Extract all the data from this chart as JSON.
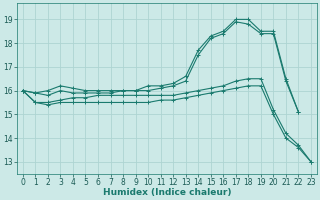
{
  "xlabel": "Humidex (Indice chaleur)",
  "xlim": [
    -0.5,
    23.5
  ],
  "ylim": [
    12.5,
    19.7
  ],
  "yticks": [
    13,
    14,
    15,
    16,
    17,
    18,
    19
  ],
  "xticks": [
    0,
    1,
    2,
    3,
    4,
    5,
    6,
    7,
    8,
    9,
    10,
    11,
    12,
    13,
    14,
    15,
    16,
    17,
    18,
    19,
    20,
    21,
    22,
    23
  ],
  "bg_color": "#cce9e7",
  "grid_color": "#aed4d2",
  "line_color": "#1a7a6e",
  "tick_fontsize": 5.5,
  "xlabel_fontsize": 6.5,
  "lines": [
    {
      "x": [
        0,
        1,
        2,
        3,
        4,
        5,
        6,
        7,
        8,
        9,
        10,
        11,
        12,
        13,
        14,
        15,
        16,
        17,
        18,
        19,
        20,
        21,
        22
      ],
      "y": [
        16.0,
        15.9,
        16.0,
        16.2,
        16.1,
        16.0,
        16.0,
        16.0,
        16.0,
        16.0,
        16.2,
        16.2,
        16.3,
        16.6,
        17.7,
        18.3,
        18.5,
        19.0,
        19.0,
        18.5,
        18.5,
        16.5,
        15.1
      ]
    },
    {
      "x": [
        0,
        1,
        2,
        3,
        4,
        5,
        6,
        7,
        8,
        9,
        10,
        11,
        12,
        13,
        14,
        15,
        16,
        17,
        18,
        19,
        20,
        21,
        22
      ],
      "y": [
        16.0,
        15.9,
        15.8,
        16.0,
        15.9,
        15.9,
        15.9,
        15.9,
        16.0,
        16.0,
        16.0,
        16.1,
        16.2,
        16.4,
        17.5,
        18.2,
        18.4,
        18.9,
        18.8,
        18.4,
        18.4,
        16.4,
        15.1
      ]
    },
    {
      "x": [
        0,
        1,
        2,
        3,
        4,
        5,
        6,
        7,
        8,
        9,
        10,
        11,
        12,
        13,
        14,
        15,
        16,
        17,
        18,
        19,
        20,
        21,
        22,
        23
      ],
      "y": [
        16.0,
        15.5,
        15.5,
        15.6,
        15.7,
        15.7,
        15.8,
        15.8,
        15.8,
        15.8,
        15.8,
        15.8,
        15.8,
        15.9,
        16.0,
        16.1,
        16.2,
        16.4,
        16.5,
        16.5,
        15.2,
        14.2,
        13.7,
        13.0
      ]
    },
    {
      "x": [
        0,
        1,
        2,
        3,
        4,
        5,
        6,
        7,
        8,
        9,
        10,
        11,
        12,
        13,
        14,
        15,
        16,
        17,
        18,
        19,
        20,
        21,
        22,
        23
      ],
      "y": [
        16.0,
        15.5,
        15.4,
        15.5,
        15.5,
        15.5,
        15.5,
        15.5,
        15.5,
        15.5,
        15.5,
        15.6,
        15.6,
        15.7,
        15.8,
        15.9,
        16.0,
        16.1,
        16.2,
        16.2,
        15.0,
        14.0,
        13.6,
        13.0
      ]
    }
  ]
}
